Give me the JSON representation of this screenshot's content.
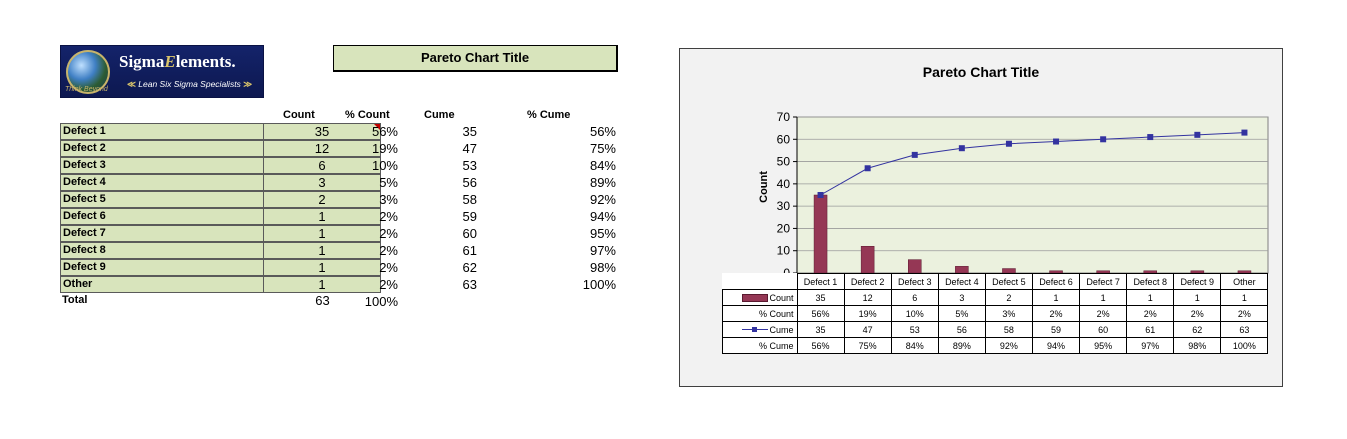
{
  "logo": {
    "brand_pre": "Sigma",
    "brand_post": "lements",
    "brand_mark": "E",
    "reg": ".",
    "tagline": "Lean Six Sigma Specialists",
    "chevron_left": "≪",
    "chevron_right": "≫",
    "script_text": "Think Beyond"
  },
  "sheet": {
    "title": "Pareto Chart Title",
    "headers": {
      "count": "Count",
      "pct_count": "% Count",
      "cume": "Cume",
      "pct_cume": "% Cume"
    },
    "rows": [
      {
        "name": "Defect 1",
        "count": "35",
        "pct_count": "56%",
        "cume": "35",
        "pct_cume": "56%"
      },
      {
        "name": "Defect 2",
        "count": "12",
        "pct_count": "19%",
        "cume": "47",
        "pct_cume": "75%"
      },
      {
        "name": "Defect 3",
        "count": "6",
        "pct_count": "10%",
        "cume": "53",
        "pct_cume": "84%"
      },
      {
        "name": "Defect 4",
        "count": "3",
        "pct_count": "5%",
        "cume": "56",
        "pct_cume": "89%"
      },
      {
        "name": "Defect 5",
        "count": "2",
        "pct_count": "3%",
        "cume": "58",
        "pct_cume": "92%"
      },
      {
        "name": "Defect 6",
        "count": "1",
        "pct_count": "2%",
        "cume": "59",
        "pct_cume": "94%"
      },
      {
        "name": "Defect 7",
        "count": "1",
        "pct_count": "2%",
        "cume": "60",
        "pct_cume": "95%"
      },
      {
        "name": "Defect 8",
        "count": "1",
        "pct_count": "2%",
        "cume": "61",
        "pct_cume": "97%"
      },
      {
        "name": "Defect 9",
        "count": "1",
        "pct_count": "2%",
        "cume": "62",
        "pct_cume": "98%"
      },
      {
        "name": "Other",
        "count": "1",
        "pct_count": "2%",
        "cume": "63",
        "pct_cume": "100%"
      }
    ],
    "total": {
      "name": "Total",
      "count": "63",
      "pct_count": "100%"
    }
  },
  "colors": {
    "bar": "#953755",
    "line": "#3333a0",
    "plot_bg": "#ebf1de",
    "cell_bg": "#d8e4bc"
  },
  "chart_data": {
    "type": "bar",
    "title": "Pareto Chart Title",
    "ylabel": "Count",
    "ylim": [
      0,
      70
    ],
    "yticks": [
      "0",
      "10",
      "20",
      "30",
      "40",
      "50",
      "60",
      "70"
    ],
    "grid": true,
    "categories": [
      "Defect 1",
      "Defect 2",
      "Defect 3",
      "Defect 4",
      "Defect 5",
      "Defect 6",
      "Defect 7",
      "Defect 8",
      "Defect 9",
      "Other"
    ],
    "series": [
      {
        "name": "Count",
        "kind": "bar",
        "values": [
          35,
          12,
          6,
          3,
          2,
          1,
          1,
          1,
          1,
          1
        ]
      },
      {
        "name": "Cume",
        "kind": "line",
        "values": [
          35,
          47,
          53,
          56,
          58,
          59,
          60,
          61,
          62,
          63
        ]
      }
    ],
    "table_rows": [
      {
        "label": "Count",
        "legend": "bar",
        "values": [
          "35",
          "12",
          "6",
          "3",
          "2",
          "1",
          "1",
          "1",
          "1",
          "1"
        ]
      },
      {
        "label": "% Count",
        "legend": "",
        "values": [
          "56%",
          "19%",
          "10%",
          "5%",
          "3%",
          "2%",
          "2%",
          "2%",
          "2%",
          "2%"
        ]
      },
      {
        "label": "Cume",
        "legend": "line",
        "values": [
          "35",
          "47",
          "53",
          "56",
          "58",
          "59",
          "60",
          "61",
          "62",
          "63"
        ]
      },
      {
        "label": "% Cume",
        "legend": "",
        "values": [
          "56%",
          "75%",
          "84%",
          "89%",
          "92%",
          "94%",
          "95%",
          "97%",
          "98%",
          "100%"
        ]
      }
    ]
  }
}
